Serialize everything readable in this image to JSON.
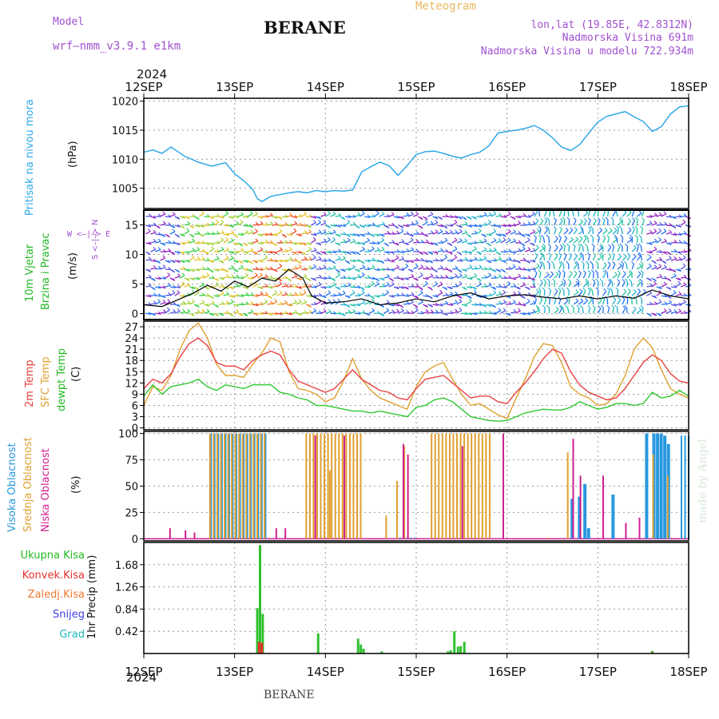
{
  "header": {
    "model_label": "Model",
    "model_name": "wrf–nmm_v3.9.1 e1km",
    "title": "BERANE",
    "meteogram_label": "Meteogram",
    "coords": "lon,lat (19.85E, 42.8312N)",
    "elevation": "Nadmorska Visina 691m",
    "model_elevation": "Nadmorska Visina u modelu 722.934m"
  },
  "footer_title": "BERANE",
  "watermark": "made by Angel",
  "colors": {
    "pressure": "#30a8e8",
    "temp2m": "#e84040",
    "sfc_temp": "#e0a030",
    "dewpt": "#30c830",
    "precip": "#30c030",
    "convek": "#e83030",
    "high_cloud": "#2898e0",
    "mid_cloud": "#e0a030",
    "low_cloud": "#d02090"
  },
  "x_axis": {
    "year": "2024",
    "ticks": [
      "12SEP",
      "13SEP",
      "14SEP",
      "15SEP",
      "16SEP",
      "17SEP",
      "18SEP"
    ]
  },
  "chart_data": [
    {
      "type": "line",
      "id": "pressure",
      "ylabel_left": "Pritisak na nivou mora",
      "ylabel_unit": "(hPa)",
      "ylim": [
        1001.5,
        1020.5
      ],
      "yticks": [
        1005,
        1010,
        1015,
        1020
      ],
      "grid": true,
      "x_days": [
        0,
        0.1,
        0.2,
        0.3,
        0.45,
        0.6,
        0.75,
        0.9,
        1.0,
        1.1,
        1.2,
        1.25,
        1.3,
        1.4,
        1.5,
        1.6,
        1.7,
        1.8,
        1.9,
        2.0,
        2.1,
        2.2,
        2.3,
        2.4,
        2.5,
        2.6,
        2.7,
        2.8,
        2.9,
        3.0,
        3.1,
        3.2,
        3.3,
        3.4,
        3.5,
        3.6,
        3.7,
        3.8,
        3.9,
        4.0,
        4.1,
        4.2,
        4.3,
        4.4,
        4.5,
        4.6,
        4.7,
        4.8,
        4.9,
        5.0,
        5.1,
        5.2,
        5.3,
        5.4,
        5.5,
        5.6,
        5.7,
        5.8,
        5.9,
        6.0
      ],
      "values": [
        1011.2,
        1011.6,
        1011.0,
        1012.1,
        1010.5,
        1009.5,
        1008.8,
        1009.4,
        1007.5,
        1006.3,
        1004.8,
        1003.2,
        1002.7,
        1003.6,
        1003.9,
        1004.2,
        1004.4,
        1004.2,
        1004.6,
        1004.4,
        1004.6,
        1004.5,
        1004.7,
        1007.8,
        1008.7,
        1009.5,
        1008.9,
        1007.2,
        1008.9,
        1010.8,
        1011.3,
        1011.4,
        1011.0,
        1010.5,
        1010.2,
        1010.8,
        1011.2,
        1012.3,
        1014.5,
        1014.8,
        1015.0,
        1015.3,
        1015.8,
        1015.0,
        1013.7,
        1012.1,
        1011.5,
        1012.5,
        1014.5,
        1016.4,
        1017.4,
        1017.8,
        1018.2,
        1017.3,
        1016.5,
        1014.8,
        1015.6,
        1017.8,
        1019.0,
        1019.2
      ]
    },
    {
      "type": "line",
      "id": "wind",
      "ylabel_left": [
        "10m Vjetar",
        "Brzina i Pravac"
      ],
      "ylabel_unit": "(m/s)",
      "compass": "W <–|–> E",
      "compass2": "S <–|–> N",
      "ylim": [
        -1,
        17.5
      ],
      "yticks": [
        0,
        5,
        10,
        15
      ],
      "grid": true,
      "x_days": [
        0,
        0.2,
        0.4,
        0.55,
        0.7,
        0.85,
        1.0,
        1.15,
        1.3,
        1.45,
        1.6,
        1.75,
        1.85,
        2.0,
        2.2,
        2.4,
        2.6,
        2.8,
        3.0,
        3.2,
        3.4,
        3.6,
        3.8,
        4.0,
        4.2,
        4.4,
        4.6,
        4.8,
        5.0,
        5.2,
        5.4,
        5.6,
        5.8,
        6.0
      ],
      "values": [
        1.5,
        1.2,
        2.5,
        3.5,
        4.8,
        3.8,
        5.5,
        4.5,
        6.0,
        5.5,
        7.5,
        6.0,
        3.0,
        1.8,
        2.0,
        2.5,
        1.5,
        1.8,
        2.5,
        2.0,
        3.0,
        3.5,
        2.5,
        3.0,
        3.2,
        2.8,
        2.5,
        3.0,
        2.5,
        3.0,
        2.6,
        4.0,
        3.0,
        2.5
      ]
    },
    {
      "type": "line",
      "id": "temperature",
      "ylabel_left": [
        "2m Temp",
        "SFC Temp",
        "dewpt Temp"
      ],
      "ylabel_unit": "(C)",
      "ylim": [
        -0.5,
        28.5
      ],
      "yticks": [
        0,
        3,
        6,
        9,
        12,
        15,
        18,
        21,
        24,
        27
      ],
      "grid": true,
      "x_days": [
        0,
        0.1,
        0.2,
        0.3,
        0.4,
        0.5,
        0.6,
        0.7,
        0.8,
        0.9,
        1.0,
        1.1,
        1.2,
        1.3,
        1.4,
        1.5,
        1.6,
        1.7,
        1.8,
        1.9,
        2.0,
        2.1,
        2.2,
        2.3,
        2.4,
        2.5,
        2.6,
        2.7,
        2.8,
        2.9,
        3.0,
        3.1,
        3.2,
        3.3,
        3.4,
        3.5,
        3.6,
        3.7,
        3.8,
        3.9,
        4.0,
        4.1,
        4.2,
        4.3,
        4.4,
        4.5,
        4.6,
        4.7,
        4.8,
        4.9,
        5.0,
        5.1,
        5.2,
        5.3,
        5.4,
        5.5,
        5.6,
        5.7,
        5.8,
        5.9,
        6.0
      ],
      "series": [
        {
          "name": "2m Temp",
          "values": [
            10.5,
            13.0,
            12.0,
            14.5,
            19.0,
            22.5,
            24.0,
            22.0,
            17.5,
            16.5,
            16.5,
            15.5,
            18.0,
            19.5,
            20.5,
            19.5,
            15.5,
            12.5,
            11.5,
            10.5,
            9.5,
            10.5,
            13.0,
            15.5,
            13.0,
            11.5,
            10.0,
            9.5,
            8.0,
            7.5,
            10.5,
            13.0,
            13.5,
            14.0,
            12.0,
            10.0,
            8.0,
            8.5,
            8.5,
            7.0,
            6.5,
            9.5,
            12.0,
            15.0,
            18.5,
            21.0,
            20.0,
            15.0,
            11.5,
            9.5,
            8.5,
            7.5,
            8.0,
            10.5,
            14.0,
            17.5,
            19.5,
            18.0,
            14.5,
            12.5,
            12.0
          ]
        },
        {
          "name": "SFC Temp",
          "values": [
            6.0,
            11.0,
            10.0,
            14.0,
            21.0,
            26.0,
            28.0,
            24.0,
            17.0,
            14.0,
            14.0,
            13.5,
            17.0,
            20.0,
            24.0,
            23.0,
            15.0,
            10.5,
            10.0,
            9.0,
            7.0,
            8.0,
            12.5,
            18.5,
            13.0,
            10.0,
            8.0,
            7.0,
            6.0,
            5.0,
            11.0,
            15.0,
            16.5,
            17.5,
            13.0,
            9.0,
            6.0,
            6.5,
            5.0,
            3.5,
            2.5,
            8.0,
            13.0,
            19.0,
            22.5,
            22.0,
            17.5,
            11.0,
            9.0,
            8.0,
            6.0,
            6.5,
            9.0,
            14.0,
            21.0,
            24.0,
            21.5,
            15.5,
            10.5,
            9.0,
            8.0
          ]
        },
        {
          "name": "dewpt Temp",
          "values": [
            8.5,
            11.5,
            9.0,
            11.0,
            11.5,
            12.0,
            13.0,
            11.0,
            10.0,
            11.5,
            11.0,
            10.5,
            11.5,
            11.5,
            11.5,
            9.5,
            9.0,
            8.0,
            7.5,
            6.0,
            6.0,
            5.5,
            5.0,
            4.5,
            4.5,
            4.0,
            4.5,
            4.0,
            3.5,
            3.0,
            5.5,
            6.0,
            7.5,
            8.0,
            7.0,
            5.0,
            3.0,
            2.5,
            2.0,
            1.8,
            2.0,
            3.0,
            4.0,
            4.5,
            5.0,
            4.8,
            4.8,
            5.5,
            7.0,
            6.0,
            5.0,
            5.5,
            6.5,
            6.5,
            6.0,
            6.5,
            9.5,
            8.0,
            8.5,
            10.0,
            8.5
          ]
        }
      ]
    },
    {
      "type": "bar",
      "id": "cloud",
      "ylabel_left": [
        "Visoka Oblacnost",
        "Srednja Oblacnost",
        "Niska Oblacnost"
      ],
      "ylabel_unit": "(%)",
      "ylim": [
        -2,
        102
      ],
      "yticks": [
        0,
        25,
        50,
        75,
        100
      ],
      "grid": true,
      "series": [
        {
          "name": "Visoka Oblacnost",
          "segments": [
            [
              0.72,
              1.36,
              100
            ],
            [
              2.8,
              2.98,
              1
            ],
            [
              5.9,
              6.0,
              98
            ]
          ],
          "spikes": [
            [
              4.7,
              38
            ],
            [
              4.78,
              40
            ],
            [
              4.84,
              52
            ],
            [
              4.88,
              10
            ],
            [
              5.15,
              42
            ],
            [
              5.52,
              100
            ],
            [
              5.6,
              100
            ],
            [
              5.64,
              100
            ],
            [
              5.68,
              100
            ],
            [
              5.72,
              98
            ],
            [
              5.76,
              90
            ]
          ]
        },
        {
          "name": "Srednja Oblacnost",
          "segments": [
            [
              0.72,
              1.36,
              100
            ],
            [
              1.78,
              2.4,
              100
            ],
            [
              3.16,
              3.84,
              100
            ]
          ],
          "spikes": [
            [
              1.2,
              100
            ],
            [
              1.98,
              85
            ],
            [
              2.04,
              65
            ],
            [
              2.66,
              22
            ],
            [
              2.78,
              55
            ],
            [
              2.86,
              88
            ],
            [
              4.45,
              1
            ],
            [
              4.66,
              82
            ],
            [
              5.6,
              80
            ],
            [
              5.76,
              60
            ]
          ]
        },
        {
          "name": "Niska Oblacnost",
          "segments": [],
          "spikes": [
            [
              0.28,
              10
            ],
            [
              0.45,
              8
            ],
            [
              0.55,
              6
            ],
            [
              1.45,
              10
            ],
            [
              1.55,
              10
            ],
            [
              1.88,
              98
            ],
            [
              2.2,
              98
            ],
            [
              2.85,
              90
            ],
            [
              2.9,
              80
            ],
            [
              3.5,
              88
            ],
            [
              3.95,
              100
            ],
            [
              4.72,
              95
            ],
            [
              4.8,
              60
            ],
            [
              5.05,
              60
            ],
            [
              5.3,
              15
            ],
            [
              5.45,
              20
            ]
          ]
        }
      ]
    },
    {
      "type": "bar",
      "id": "precip",
      "ylabel_left": "1hr Precip (mm)",
      "legend": [
        "Ukupna Kisa",
        "Konvek.Kisa",
        "Zaledj.Kisa",
        "Snijeg",
        "Grad"
      ],
      "ylim": [
        0,
        2.1
      ],
      "yticks": [
        0.42,
        0.84,
        1.26,
        1.68
      ],
      "grid": true,
      "series": [
        {
          "name": "Ukupna Kisa",
          "bars": [
            [
              1.25,
              0.86
            ],
            [
              1.28,
              2.05
            ],
            [
              1.31,
              0.75
            ],
            [
              1.92,
              0.38
            ],
            [
              2.36,
              0.28
            ],
            [
              2.39,
              0.17
            ],
            [
              2.42,
              0.09
            ],
            [
              2.62,
              0.04
            ],
            [
              3.35,
              0.04
            ],
            [
              3.38,
              0.06
            ],
            [
              3.42,
              0.42
            ],
            [
              3.46,
              0.13
            ],
            [
              3.49,
              0.14
            ],
            [
              3.53,
              0.22
            ],
            [
              5.6,
              0.05
            ]
          ]
        },
        {
          "name": "Konvek.Kisa",
          "bars": [
            [
              1.27,
              0.22
            ],
            [
              1.3,
              0.2
            ],
            [
              5.6,
              0.02
            ]
          ]
        }
      ]
    }
  ]
}
